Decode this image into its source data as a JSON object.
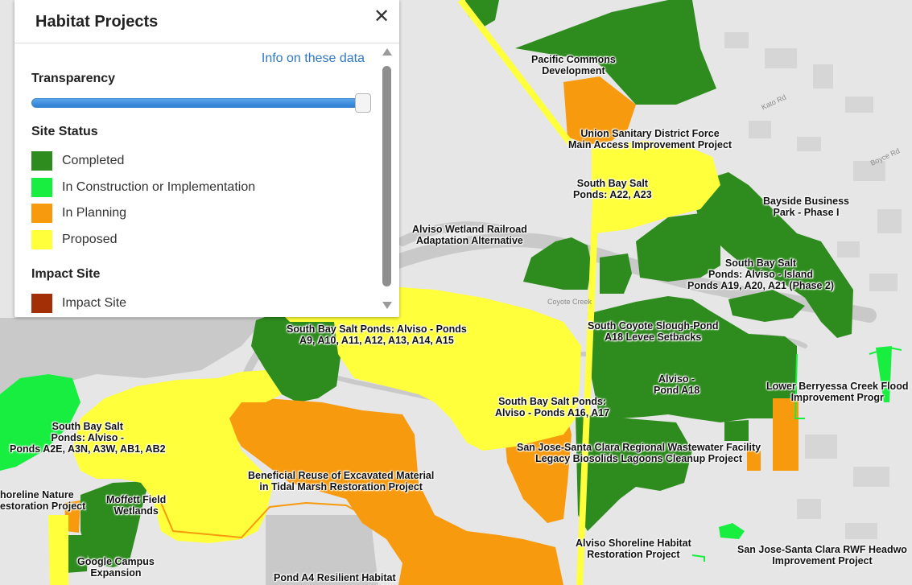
{
  "panel": {
    "title": "Habitat Projects",
    "close_icon": "close-icon",
    "info_link": "Info on these data",
    "transparency_label": "Transparency",
    "transparency_value": 1.0,
    "site_status_label": "Site Status",
    "impact_site_label": "Impact Site",
    "legend": [
      {
        "label": "Completed",
        "color": "#2e8b1e"
      },
      {
        "label": "In Construction or Implementation",
        "color": "#17ee3f"
      },
      {
        "label": "In Planning",
        "color": "#f79a0e"
      },
      {
        "label": "Proposed",
        "color": "#ffff3b"
      }
    ],
    "impact_legend": [
      {
        "label": "Impact Site",
        "color": "#a32f07"
      }
    ]
  },
  "map": {
    "colors": {
      "completed": "#2e8b1e",
      "construction": "#17ee3f",
      "planning": "#f79a0e",
      "proposed": "#ffff3b",
      "water": "#c9c9c9",
      "land": "#e6e6e6"
    },
    "labels": {
      "pacific_commons": "Pacific Commons\nDevelopment",
      "union_sanitary": "Union Sanitary District Force\nMain Access Improvement Project",
      "ponds_a22": "South Bay Salt\nPonds: A22, A23",
      "bayside": "Bayside Business\nPark - Phase I",
      "alviso_railroad": "Alviso Wetland Railroad\nAdaptation Alternative",
      "island_ponds": "South Bay Salt\nPonds: Alviso - Island\nPonds A19, A20, A21 (Phase 2)",
      "ponds_a9": "South Bay Salt Ponds: Alviso - Ponds\nA9, A10, A11, A12, A13, A14, A15",
      "coyote_slough": "South Coyote Slough-Pond\nA18 Levee Setbacks",
      "pond_a18": "Alviso -\nPond A18",
      "lower_berryessa": "Lower Berryessa Creek Flood\nImprovement Progr",
      "ponds_a16": "South Bay Salt Ponds:\nAlviso - Ponds A16, A17",
      "ponds_a2e": "South Bay Salt\nPonds: Alviso -\nPonds A2E, A3N, A3W, AB1, AB2",
      "sj_sc_biosolids": "San Jose-Santa Clara Regional Wastewater Facility\nLegacy Biosolids Lagoons Cleanup Project",
      "beneficial_reuse": "Beneficial Reuse of Excavated Material\nin Tidal Marsh Restoration Project",
      "shoreline_nature": "horeline Nature\nestoration Project",
      "moffett": "Moffett Field\nWetlands",
      "google_campus": "Google Campus\nExpansion",
      "alviso_shoreline": "Alviso Shoreline Habitat\nRestoration Project",
      "rwf_headworks": "San Jose-Santa Clara RWF Headwo\nImprovement Project",
      "pond_a4": "Pond A4 Resilient Habitat"
    },
    "streets": {
      "coyote_creek": "Coyote Creek",
      "kato": "Kato Rd",
      "boyce": "Boyce Rd"
    }
  }
}
